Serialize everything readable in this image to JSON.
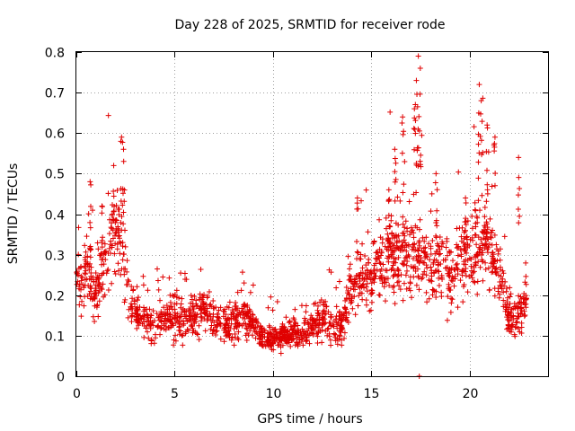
{
  "chart_data": {
    "type": "scatter",
    "title": "Day 228 of 2025, SRMTID for receiver rode",
    "xlabel": "GPS time / hours",
    "ylabel": "SRMTID / TECUs",
    "xlim": [
      0,
      24
    ],
    "ylim": [
      0,
      0.8
    ],
    "xticks": [
      0,
      5,
      10,
      15,
      20
    ],
    "yticks": [
      0,
      0.1,
      0.2,
      0.3,
      0.4,
      0.5,
      0.6,
      0.7,
      0.8
    ],
    "xtick_labels": [
      "0",
      "5",
      "10",
      "15",
      "20"
    ],
    "ytick_labels": [
      "0",
      "0.1",
      "0.2",
      "0.3",
      "0.4",
      "0.5",
      "0.6",
      "0.7",
      "0.8"
    ],
    "grid": true,
    "marker": "+",
    "color": "#e00000",
    "trend": [
      [
        0.0,
        0.24
      ],
      [
        0.3,
        0.22
      ],
      [
        0.6,
        0.28
      ],
      [
        0.9,
        0.2
      ],
      [
        1.2,
        0.24
      ],
      [
        1.5,
        0.3
      ],
      [
        1.8,
        0.34
      ],
      [
        2.1,
        0.38
      ],
      [
        2.4,
        0.3
      ],
      [
        2.7,
        0.2
      ],
      [
        3.0,
        0.16
      ],
      [
        3.5,
        0.14
      ],
      [
        4.0,
        0.13
      ],
      [
        4.5,
        0.15
      ],
      [
        5.0,
        0.15
      ],
      [
        5.5,
        0.14
      ],
      [
        6.0,
        0.15
      ],
      [
        6.5,
        0.16
      ],
      [
        7.0,
        0.14
      ],
      [
        7.5,
        0.13
      ],
      [
        8.0,
        0.13
      ],
      [
        8.5,
        0.15
      ],
      [
        9.0,
        0.13
      ],
      [
        9.5,
        0.1
      ],
      [
        10.0,
        0.09
      ],
      [
        10.5,
        0.1
      ],
      [
        11.0,
        0.11
      ],
      [
        11.5,
        0.1
      ],
      [
        12.0,
        0.13
      ],
      [
        12.5,
        0.14
      ],
      [
        13.0,
        0.13
      ],
      [
        13.5,
        0.12
      ],
      [
        14.0,
        0.22
      ],
      [
        14.5,
        0.25
      ],
      [
        15.0,
        0.24
      ],
      [
        15.5,
        0.28
      ],
      [
        16.0,
        0.3
      ],
      [
        16.5,
        0.3
      ],
      [
        17.0,
        0.28
      ],
      [
        17.5,
        0.3
      ],
      [
        18.0,
        0.26
      ],
      [
        18.5,
        0.28
      ],
      [
        19.0,
        0.25
      ],
      [
        19.5,
        0.27
      ],
      [
        20.0,
        0.3
      ],
      [
        20.5,
        0.34
      ],
      [
        21.0,
        0.33
      ],
      [
        21.5,
        0.25
      ],
      [
        22.0,
        0.15
      ],
      [
        22.5,
        0.15
      ],
      [
        22.8,
        0.18
      ]
    ],
    "spikes": [
      [
        0.7,
        0.48
      ],
      [
        1.3,
        0.42
      ],
      [
        1.9,
        0.52
      ],
      [
        2.3,
        0.59
      ],
      [
        2.4,
        0.56
      ],
      [
        16.6,
        0.64
      ],
      [
        17.3,
        0.73
      ],
      [
        17.4,
        0.79
      ],
      [
        17.5,
        0.76
      ],
      [
        17.2,
        0.66
      ],
      [
        18.3,
        0.5
      ],
      [
        19.8,
        0.44
      ],
      [
        20.5,
        0.72
      ],
      [
        20.6,
        0.68
      ],
      [
        20.9,
        0.62
      ],
      [
        21.3,
        0.59
      ],
      [
        22.5,
        0.54
      ],
      [
        14.3,
        0.44
      ],
      [
        15.9,
        0.46
      ],
      [
        16.2,
        0.56
      ]
    ],
    "series": [
      {
        "name": "SRMTID",
        "points_per_hour": 84,
        "t_start": 0.0,
        "t_end": 22.9,
        "noise_seed": 228
      }
    ]
  }
}
